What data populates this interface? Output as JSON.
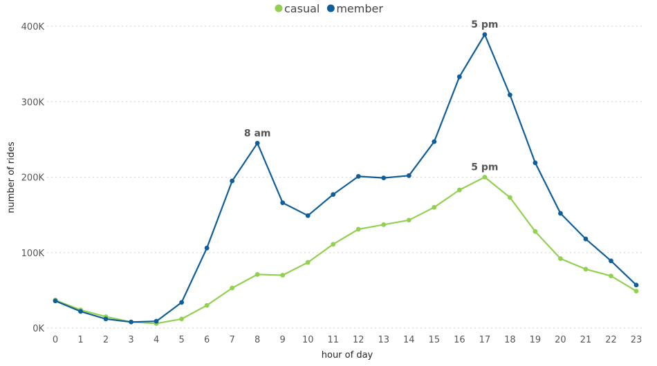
{
  "chart_data": {
    "type": "line",
    "xlabel": "hour of day",
    "ylabel": "number of rides",
    "x": [
      0,
      1,
      2,
      3,
      4,
      5,
      6,
      7,
      8,
      9,
      10,
      11,
      12,
      13,
      14,
      15,
      16,
      17,
      18,
      19,
      20,
      21,
      22,
      23
    ],
    "ylim": [
      0,
      400000
    ],
    "yticks": [
      {
        "value": 0,
        "label": "0K"
      },
      {
        "value": 100000,
        "label": "100K"
      },
      {
        "value": 200000,
        "label": "200K"
      },
      {
        "value": 300000,
        "label": "300K"
      },
      {
        "value": 400000,
        "label": "400K"
      }
    ],
    "grid": true,
    "legend_position": "top-center",
    "series": [
      {
        "name": "casual",
        "color": "#92d050",
        "values": [
          37000,
          24000,
          15000,
          8000,
          6000,
          12000,
          30000,
          53000,
          71000,
          70000,
          87000,
          111000,
          131000,
          137000,
          143000,
          160000,
          183000,
          200000,
          173000,
          128000,
          92000,
          78000,
          69000,
          49000
        ]
      },
      {
        "name": "member",
        "color": "#0f5d99",
        "values": [
          36000,
          22000,
          12000,
          8000,
          9000,
          34000,
          106000,
          195000,
          245000,
          166000,
          149000,
          177000,
          201000,
          199000,
          202000,
          247000,
          333000,
          389000,
          309000,
          219000,
          152000,
          118000,
          89000,
          57000
        ]
      }
    ],
    "annotations": [
      {
        "text": "8 am",
        "series": "member",
        "x": 8,
        "y": 245000
      },
      {
        "text": "5 pm",
        "series": "member",
        "x": 17,
        "y": 389000
      },
      {
        "text": "5 pm",
        "series": "casual",
        "x": 17,
        "y": 200000
      }
    ]
  }
}
